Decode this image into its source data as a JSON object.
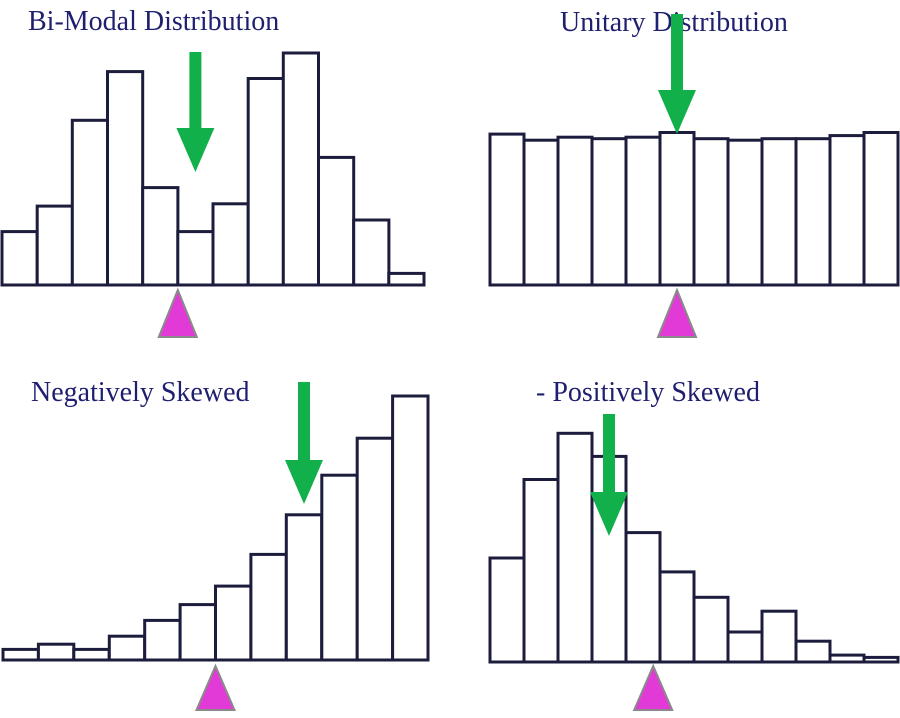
{
  "colors": {
    "bar_fill": "#ffffff",
    "bar_stroke": "#1c1c3c",
    "title_color": "#1f1f6f",
    "arrow_green": "#12b04b",
    "triangle_fill": "#e23ad6",
    "triangle_stroke": "#8a8a8a"
  },
  "chart_data": [
    {
      "type": "bar",
      "title": "Bi-Modal Distribution",
      "values": [
        2.3,
        3.4,
        7.1,
        9.2,
        4.2,
        2.3,
        3.5,
        8.9,
        10.0,
        5.5,
        2.8,
        0.5
      ],
      "ylim": [
        0,
        10
      ],
      "mode_arrow_bin": 5,
      "mean_marker_bin": 5,
      "grid": false
    },
    {
      "type": "bar",
      "title": "Unitary Distribution",
      "values": [
        9.8,
        9.4,
        9.6,
        9.5,
        9.6,
        9.9,
        9.5,
        9.4,
        9.5,
        9.5,
        9.7,
        9.9
      ],
      "ylim": [
        0,
        10
      ],
      "mode_arrow_bin": 5,
      "mean_marker_bin": 5.5,
      "grid": false
    },
    {
      "type": "bar",
      "title": "Negatively Skewed",
      "values": [
        0.4,
        0.6,
        0.4,
        0.9,
        1.5,
        2.1,
        2.8,
        4.0,
        5.5,
        7.0,
        8.4,
        10.0
      ],
      "ylim": [
        0,
        10
      ],
      "mode_arrow_bin": 8,
      "mean_marker_bin": 6,
      "grid": false
    },
    {
      "type": "bar",
      "title": "- Positively Skewed",
      "values": [
        4.5,
        7.9,
        9.9,
        8.9,
        5.6,
        3.9,
        2.8,
        1.3,
        2.2,
        0.9,
        0.3,
        0.2
      ],
      "ylim": [
        0,
        10
      ],
      "mode_arrow_bin": 3,
      "mean_marker_bin": 4.8,
      "grid": false
    }
  ]
}
